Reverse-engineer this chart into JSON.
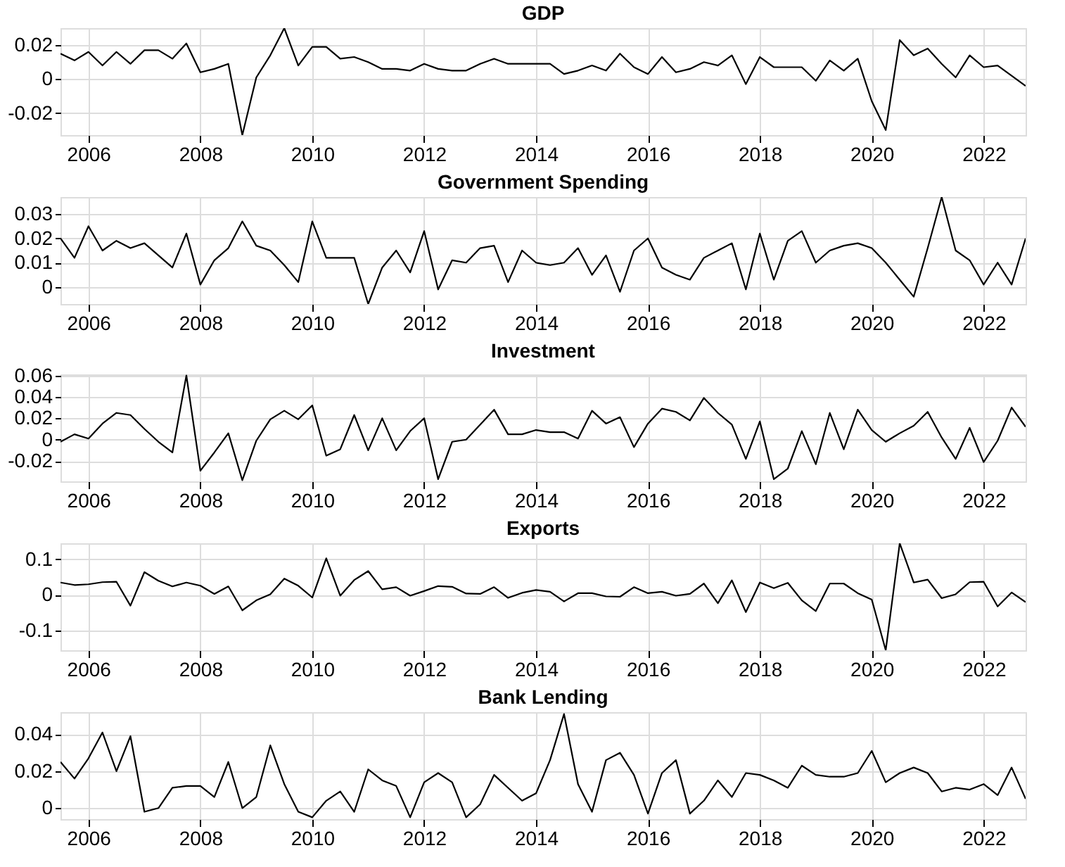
{
  "chart_data": [
    {
      "type": "line",
      "title": "GDP",
      "color": "#000000",
      "grid": true,
      "line_style": "solid",
      "x": [
        2005.5,
        2005.75,
        2006,
        2006.25,
        2006.5,
        2006.75,
        2007,
        2007.25,
        2007.5,
        2007.75,
        2008,
        2008.25,
        2008.5,
        2008.75,
        2009,
        2009.25,
        2009.5,
        2009.75,
        2010,
        2010.25,
        2010.5,
        2010.75,
        2011,
        2011.25,
        2011.5,
        2011.75,
        2012,
        2012.25,
        2012.5,
        2012.75,
        2013,
        2013.25,
        2013.5,
        2013.75,
        2014,
        2014.25,
        2014.5,
        2014.75,
        2015,
        2015.25,
        2015.5,
        2015.75,
        2016,
        2016.25,
        2016.5,
        2016.75,
        2017,
        2017.25,
        2017.5,
        2017.75,
        2018,
        2018.25,
        2018.5,
        2018.75,
        2019,
        2019.25,
        2019.5,
        2019.75,
        2020,
        2020.25,
        2020.5,
        2020.75,
        2021,
        2021.25,
        2021.5,
        2021.75,
        2022,
        2022.25,
        2022.5,
        2022.75
      ],
      "values": [
        0.015,
        0.011,
        0.016,
        0.008,
        0.016,
        0.009,
        0.017,
        0.017,
        0.012,
        0.021,
        0.004,
        0.006,
        0.009,
        -0.033,
        0.001,
        0.014,
        0.03,
        0.008,
        0.019,
        0.019,
        0.012,
        0.013,
        0.01,
        0.006,
        0.006,
        0.005,
        0.009,
        0.006,
        0.005,
        0.005,
        0.009,
        0.012,
        0.009,
        0.009,
        0.009,
        0.009,
        0.003,
        0.005,
        0.008,
        0.005,
        0.015,
        0.007,
        0.003,
        0.013,
        0.004,
        0.006,
        0.01,
        0.008,
        0.014,
        -0.003,
        0.013,
        0.007,
        0.007,
        0.007,
        -0.001,
        0.011,
        0.005,
        0.012,
        -0.013,
        -0.03,
        0.023,
        0.014,
        0.018,
        0.009,
        0.001,
        0.014,
        0.007,
        0.008,
        0.002,
        -0.004
      ],
      "xlim": [
        2005.5,
        2022.75
      ],
      "xticks": [
        2006,
        2008,
        2010,
        2012,
        2014,
        2016,
        2018,
        2020,
        2022
      ],
      "ylim": [
        -0.033,
        0.03
      ],
      "yticks": [
        -0.02,
        0,
        0.02
      ]
    },
    {
      "type": "line",
      "title": "Government Spending",
      "color": "#000000",
      "grid": true,
      "line_style": "solid",
      "x": [
        2005.5,
        2005.75,
        2006,
        2006.25,
        2006.5,
        2006.75,
        2007,
        2007.25,
        2007.5,
        2007.75,
        2008,
        2008.25,
        2008.5,
        2008.75,
        2009,
        2009.25,
        2009.5,
        2009.75,
        2010,
        2010.25,
        2010.5,
        2010.75,
        2011,
        2011.25,
        2011.5,
        2011.75,
        2012,
        2012.25,
        2012.5,
        2012.75,
        2013,
        2013.25,
        2013.5,
        2013.75,
        2014,
        2014.25,
        2014.5,
        2014.75,
        2015,
        2015.25,
        2015.5,
        2015.75,
        2016,
        2016.25,
        2016.5,
        2016.75,
        2017,
        2017.25,
        2017.5,
        2017.75,
        2018,
        2018.25,
        2018.5,
        2018.75,
        2019,
        2019.25,
        2019.5,
        2019.75,
        2020,
        2020.25,
        2020.5,
        2020.75,
        2021,
        2021.25,
        2021.5,
        2021.75,
        2022,
        2022.25,
        2022.5,
        2022.75
      ],
      "values": [
        0.02,
        0.012,
        0.025,
        0.015,
        0.019,
        0.016,
        0.018,
        0.013,
        0.008,
        0.022,
        0.001,
        0.011,
        0.016,
        0.027,
        0.017,
        0.015,
        0.009,
        0.002,
        0.027,
        0.012,
        0.012,
        0.012,
        -0.007,
        0.008,
        0.015,
        0.006,
        0.023,
        -0.001,
        0.011,
        0.01,
        0.016,
        0.017,
        0.002,
        0.015,
        0.01,
        0.009,
        0.01,
        0.016,
        0.005,
        0.013,
        -0.002,
        0.015,
        0.02,
        0.008,
        0.005,
        0.003,
        0.012,
        0.015,
        0.018,
        -0.001,
        0.022,
        0.003,
        0.019,
        0.023,
        0.01,
        0.015,
        0.017,
        0.018,
        0.016,
        0.01,
        0.003,
        -0.004,
        0.016,
        0.037,
        0.015,
        0.011,
        0.001,
        0.01,
        0.001,
        0.02
      ],
      "xlim": [
        2005.5,
        2022.75
      ],
      "xticks": [
        2006,
        2008,
        2010,
        2012,
        2014,
        2016,
        2018,
        2020,
        2022
      ],
      "ylim": [
        -0.007,
        0.037
      ],
      "yticks": [
        0,
        0.01,
        0.02,
        0.03
      ]
    },
    {
      "type": "line",
      "title": "Investment",
      "color": "#000000",
      "grid": true,
      "line_style": "solid",
      "x": [
        2005.5,
        2005.75,
        2006,
        2006.25,
        2006.5,
        2006.75,
        2007,
        2007.25,
        2007.5,
        2007.75,
        2008,
        2008.25,
        2008.5,
        2008.75,
        2009,
        2009.25,
        2009.5,
        2009.75,
        2010,
        2010.25,
        2010.5,
        2010.75,
        2011,
        2011.25,
        2011.5,
        2011.75,
        2012,
        2012.25,
        2012.5,
        2012.75,
        2013,
        2013.25,
        2013.5,
        2013.75,
        2014,
        2014.25,
        2014.5,
        2014.75,
        2015,
        2015.25,
        2015.5,
        2015.75,
        2016,
        2016.25,
        2016.5,
        2016.75,
        2017,
        2017.25,
        2017.5,
        2017.75,
        2018,
        2018.25,
        2018.5,
        2018.75,
        2019,
        2019.25,
        2019.5,
        2019.75,
        2020,
        2020.25,
        2020.5,
        2020.75,
        2021,
        2021.25,
        2021.5,
        2021.75,
        2022,
        2022.25,
        2022.5,
        2022.75
      ],
      "values": [
        -0.002,
        0.005,
        0.001,
        0.015,
        0.025,
        0.023,
        0.01,
        -0.002,
        -0.012,
        0.06,
        -0.029,
        -0.012,
        0.006,
        -0.038,
        -0.001,
        0.019,
        0.027,
        0.019,
        0.032,
        -0.015,
        -0.009,
        0.023,
        -0.01,
        0.02,
        -0.01,
        0.008,
        0.02,
        -0.037,
        -0.002,
        0.0,
        0.014,
        0.028,
        0.005,
        0.005,
        0.009,
        0.007,
        0.007,
        0.001,
        0.027,
        0.015,
        0.021,
        -0.007,
        0.015,
        0.029,
        0.026,
        0.018,
        0.039,
        0.025,
        0.014,
        -0.018,
        0.017,
        -0.037,
        -0.027,
        0.008,
        -0.023,
        0.025,
        -0.009,
        0.028,
        0.009,
        -0.002,
        0.006,
        0.013,
        0.026,
        0.002,
        -0.018,
        0.011,
        -0.021,
        -0.001,
        0.03,
        0.012
      ],
      "xlim": [
        2005.5,
        2022.75
      ],
      "xticks": [
        2006,
        2008,
        2010,
        2012,
        2014,
        2016,
        2018,
        2020,
        2022
      ],
      "ylim": [
        -0.039,
        0.061
      ],
      "yticks": [
        -0.02,
        0,
        0.02,
        0.04,
        0.06
      ]
    },
    {
      "type": "line",
      "title": "Exports",
      "color": "#000000",
      "grid": true,
      "line_style": "solid",
      "x": [
        2005.5,
        2005.75,
        2006,
        2006.25,
        2006.5,
        2006.75,
        2007,
        2007.25,
        2007.5,
        2007.75,
        2008,
        2008.25,
        2008.5,
        2008.75,
        2009,
        2009.25,
        2009.5,
        2009.75,
        2010,
        2010.25,
        2010.5,
        2010.75,
        2011,
        2011.25,
        2011.5,
        2011.75,
        2012,
        2012.25,
        2012.5,
        2012.75,
        2013,
        2013.25,
        2013.5,
        2013.75,
        2014,
        2014.25,
        2014.5,
        2014.75,
        2015,
        2015.25,
        2015.5,
        2015.75,
        2016,
        2016.25,
        2016.5,
        2016.75,
        2017,
        2017.25,
        2017.5,
        2017.75,
        2018,
        2018.25,
        2018.5,
        2018.75,
        2019,
        2019.25,
        2019.5,
        2019.75,
        2020,
        2020.25,
        2020.5,
        2020.75,
        2021,
        2021.25,
        2021.5,
        2021.75,
        2022,
        2022.25,
        2022.5,
        2022.75
      ],
      "values": [
        0.035,
        0.028,
        0.03,
        0.036,
        0.037,
        -0.03,
        0.064,
        0.04,
        0.024,
        0.035,
        0.026,
        0.003,
        0.024,
        -0.043,
        -0.015,
        0.002,
        0.046,
        0.026,
        -0.007,
        0.103,
        -0.002,
        0.042,
        0.067,
        0.016,
        0.022,
        -0.002,
        0.011,
        0.025,
        0.023,
        0.004,
        0.003,
        0.022,
        -0.008,
        0.006,
        0.014,
        0.009,
        -0.018,
        0.005,
        0.005,
        -0.004,
        -0.005,
        0.022,
        0.005,
        0.009,
        -0.002,
        0.003,
        0.032,
        -0.023,
        0.041,
        -0.048,
        0.035,
        0.019,
        0.034,
        -0.015,
        -0.045,
        0.032,
        0.032,
        0.005,
        -0.013,
        -0.155,
        0.145,
        0.035,
        0.043,
        -0.009,
        0.002,
        0.036,
        0.037,
        -0.032,
        0.007,
        -0.02
      ],
      "xlim": [
        2005.5,
        2022.75
      ],
      "xticks": [
        2006,
        2008,
        2010,
        2012,
        2014,
        2016,
        2018,
        2020,
        2022
      ],
      "ylim": [
        -0.155,
        0.145
      ],
      "yticks": [
        -0.1,
        0,
        0.1
      ]
    },
    {
      "type": "line",
      "title": "Bank Lending",
      "color": "#000000",
      "grid": true,
      "line_style": "solid",
      "x": [
        2005.5,
        2005.75,
        2006,
        2006.25,
        2006.5,
        2006.75,
        2007,
        2007.25,
        2007.5,
        2007.75,
        2008,
        2008.25,
        2008.5,
        2008.75,
        2009,
        2009.25,
        2009.5,
        2009.75,
        2010,
        2010.25,
        2010.5,
        2010.75,
        2011,
        2011.25,
        2011.5,
        2011.75,
        2012,
        2012.25,
        2012.5,
        2012.75,
        2013,
        2013.25,
        2013.5,
        2013.75,
        2014,
        2014.25,
        2014.5,
        2014.75,
        2015,
        2015.25,
        2015.5,
        2015.75,
        2016,
        2016.25,
        2016.5,
        2016.75,
        2017,
        2017.25,
        2017.5,
        2017.75,
        2018,
        2018.25,
        2018.5,
        2018.75,
        2019,
        2019.25,
        2019.5,
        2019.75,
        2020,
        2020.25,
        2020.5,
        2020.75,
        2021,
        2021.25,
        2021.5,
        2021.75,
        2022,
        2022.25,
        2022.5,
        2022.75
      ],
      "values": [
        0.025,
        0.016,
        0.027,
        0.041,
        0.02,
        0.039,
        -0.002,
        0.0,
        0.011,
        0.012,
        0.012,
        0.006,
        0.025,
        0.0,
        0.006,
        0.034,
        0.013,
        -0.002,
        -0.005,
        0.004,
        0.009,
        -0.002,
        0.021,
        0.015,
        0.012,
        -0.005,
        0.014,
        0.019,
        0.014,
        -0.005,
        0.002,
        0.018,
        0.011,
        0.004,
        0.008,
        0.026,
        0.051,
        0.013,
        -0.002,
        0.026,
        0.03,
        0.018,
        -0.003,
        0.019,
        0.026,
        -0.003,
        0.004,
        0.015,
        0.006,
        0.019,
        0.018,
        0.015,
        0.011,
        0.023,
        0.018,
        0.017,
        0.017,
        0.019,
        0.031,
        0.014,
        0.019,
        0.022,
        0.019,
        0.009,
        0.011,
        0.01,
        0.013,
        0.007,
        0.022,
        0.005
      ],
      "xlim": [
        2005.5,
        2022.75
      ],
      "xticks": [
        2006,
        2008,
        2010,
        2012,
        2014,
        2016,
        2018,
        2020,
        2022
      ],
      "ylim": [
        -0.006,
        0.052
      ],
      "yticks": [
        0,
        0.02,
        0.04
      ]
    }
  ]
}
